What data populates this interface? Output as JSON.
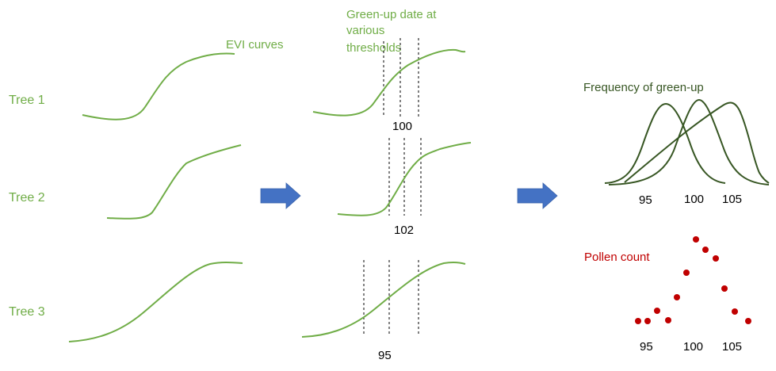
{
  "colors": {
    "green_light": "#70ad47",
    "green_dark": "#375623",
    "arrow_blue": "#4472c4",
    "pollen_red": "#c00000",
    "black": "#000000"
  },
  "labels": {
    "evi_curves": "EVI curves",
    "greenup_line1": "Green-up date at",
    "greenup_line2": "various",
    "greenup_line3": "thresholds",
    "frequency": "Frequency of green-up",
    "pollen": "Pollen count"
  },
  "trees": [
    {
      "label": "Tree 1",
      "greenup_value": "100"
    },
    {
      "label": "Tree 2",
      "greenup_value": "102"
    },
    {
      "label": "Tree 3",
      "greenup_value": "95"
    }
  ],
  "frequency_axis": [
    "95",
    "100",
    "105"
  ],
  "pollen_axis": [
    "95",
    "100",
    "105"
  ],
  "icons": {
    "arrow": "right-arrow-icon"
  }
}
